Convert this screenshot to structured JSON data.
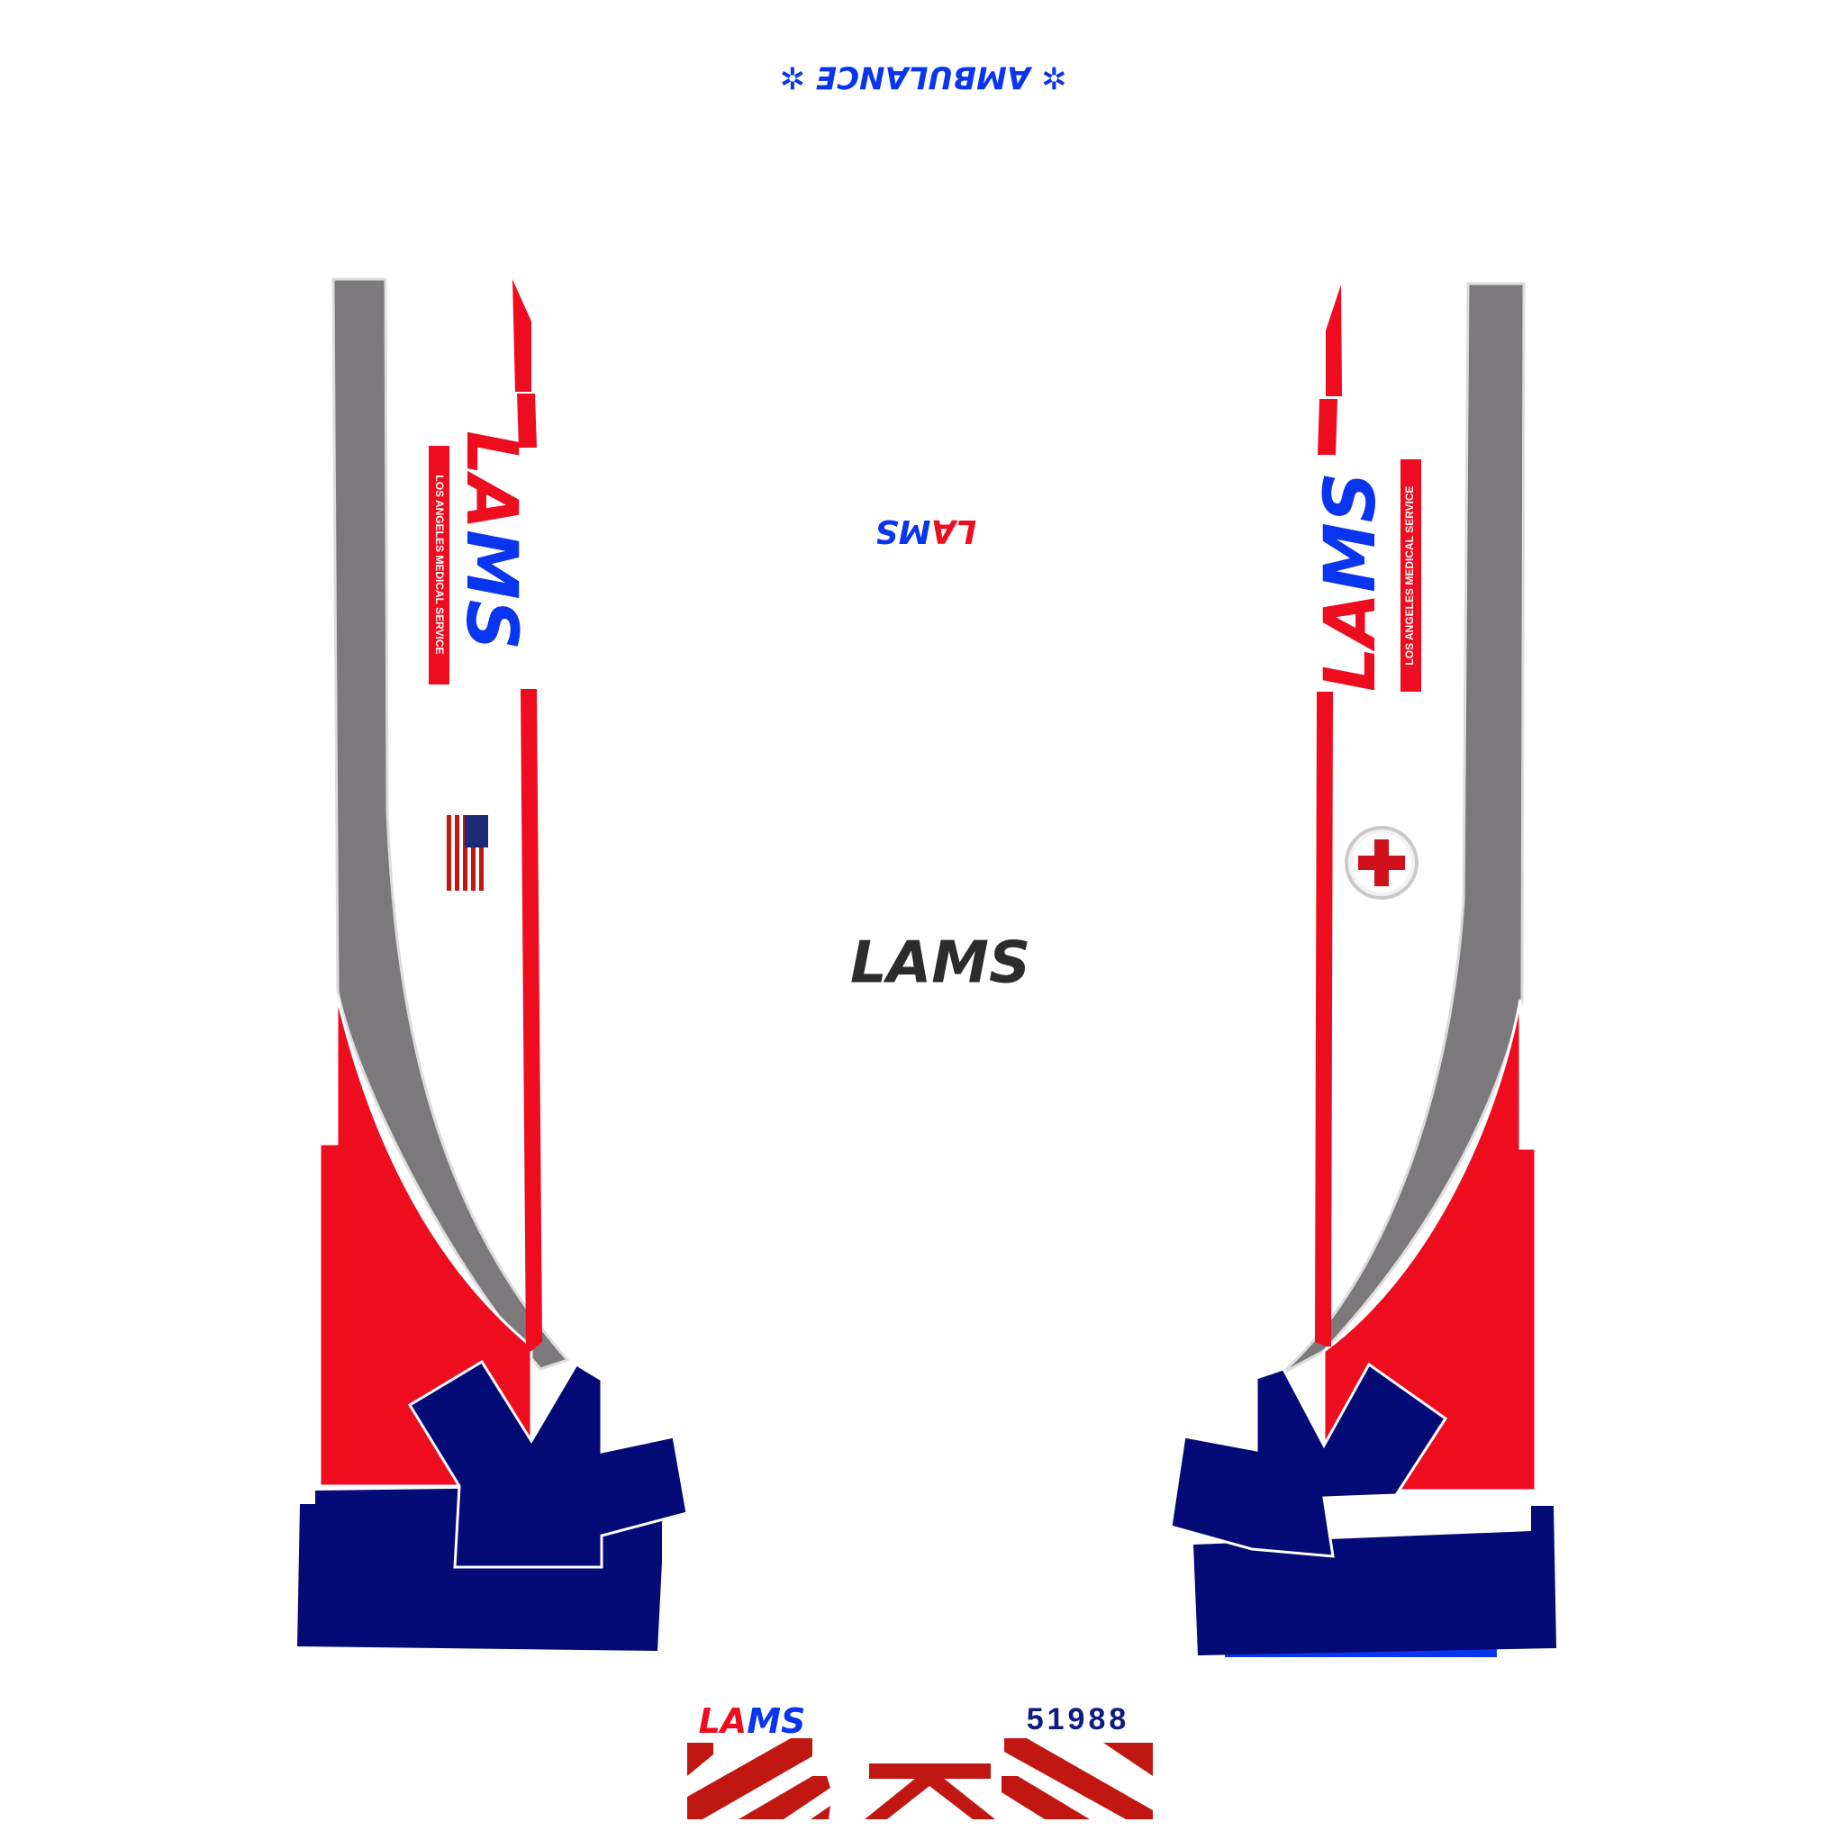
{
  "colors": {
    "red": "#ee0c1f",
    "navy": "#040b77",
    "gray": "#7b797c",
    "blue": "#0a35ee",
    "dark": "#2c2c2c",
    "chevron_red": "#c11712",
    "white": "#ffffff"
  },
  "top_banner": {
    "text": "✲ AMBULANCE ✲"
  },
  "left_side": {
    "logo_letters": [
      "L",
      "A",
      "M",
      "S"
    ],
    "tagline": "LOS ANGELES MEDICAL SERVICE",
    "flag_icon": "us-flag-icon"
  },
  "right_side": {
    "logo_letters": [
      "L",
      "A",
      "M",
      "S"
    ],
    "tagline": "LOS ANGELES MEDICAL SERVICE",
    "badge_icon": "red-cross-icon"
  },
  "roof_logo": {
    "letters": [
      "L",
      "A",
      "M",
      "S"
    ]
  },
  "center_logo": {
    "text": "LAMS"
  },
  "rear": {
    "logo_letters": [
      "L",
      "A",
      "M",
      "S"
    ],
    "unit_number": "51988"
  }
}
